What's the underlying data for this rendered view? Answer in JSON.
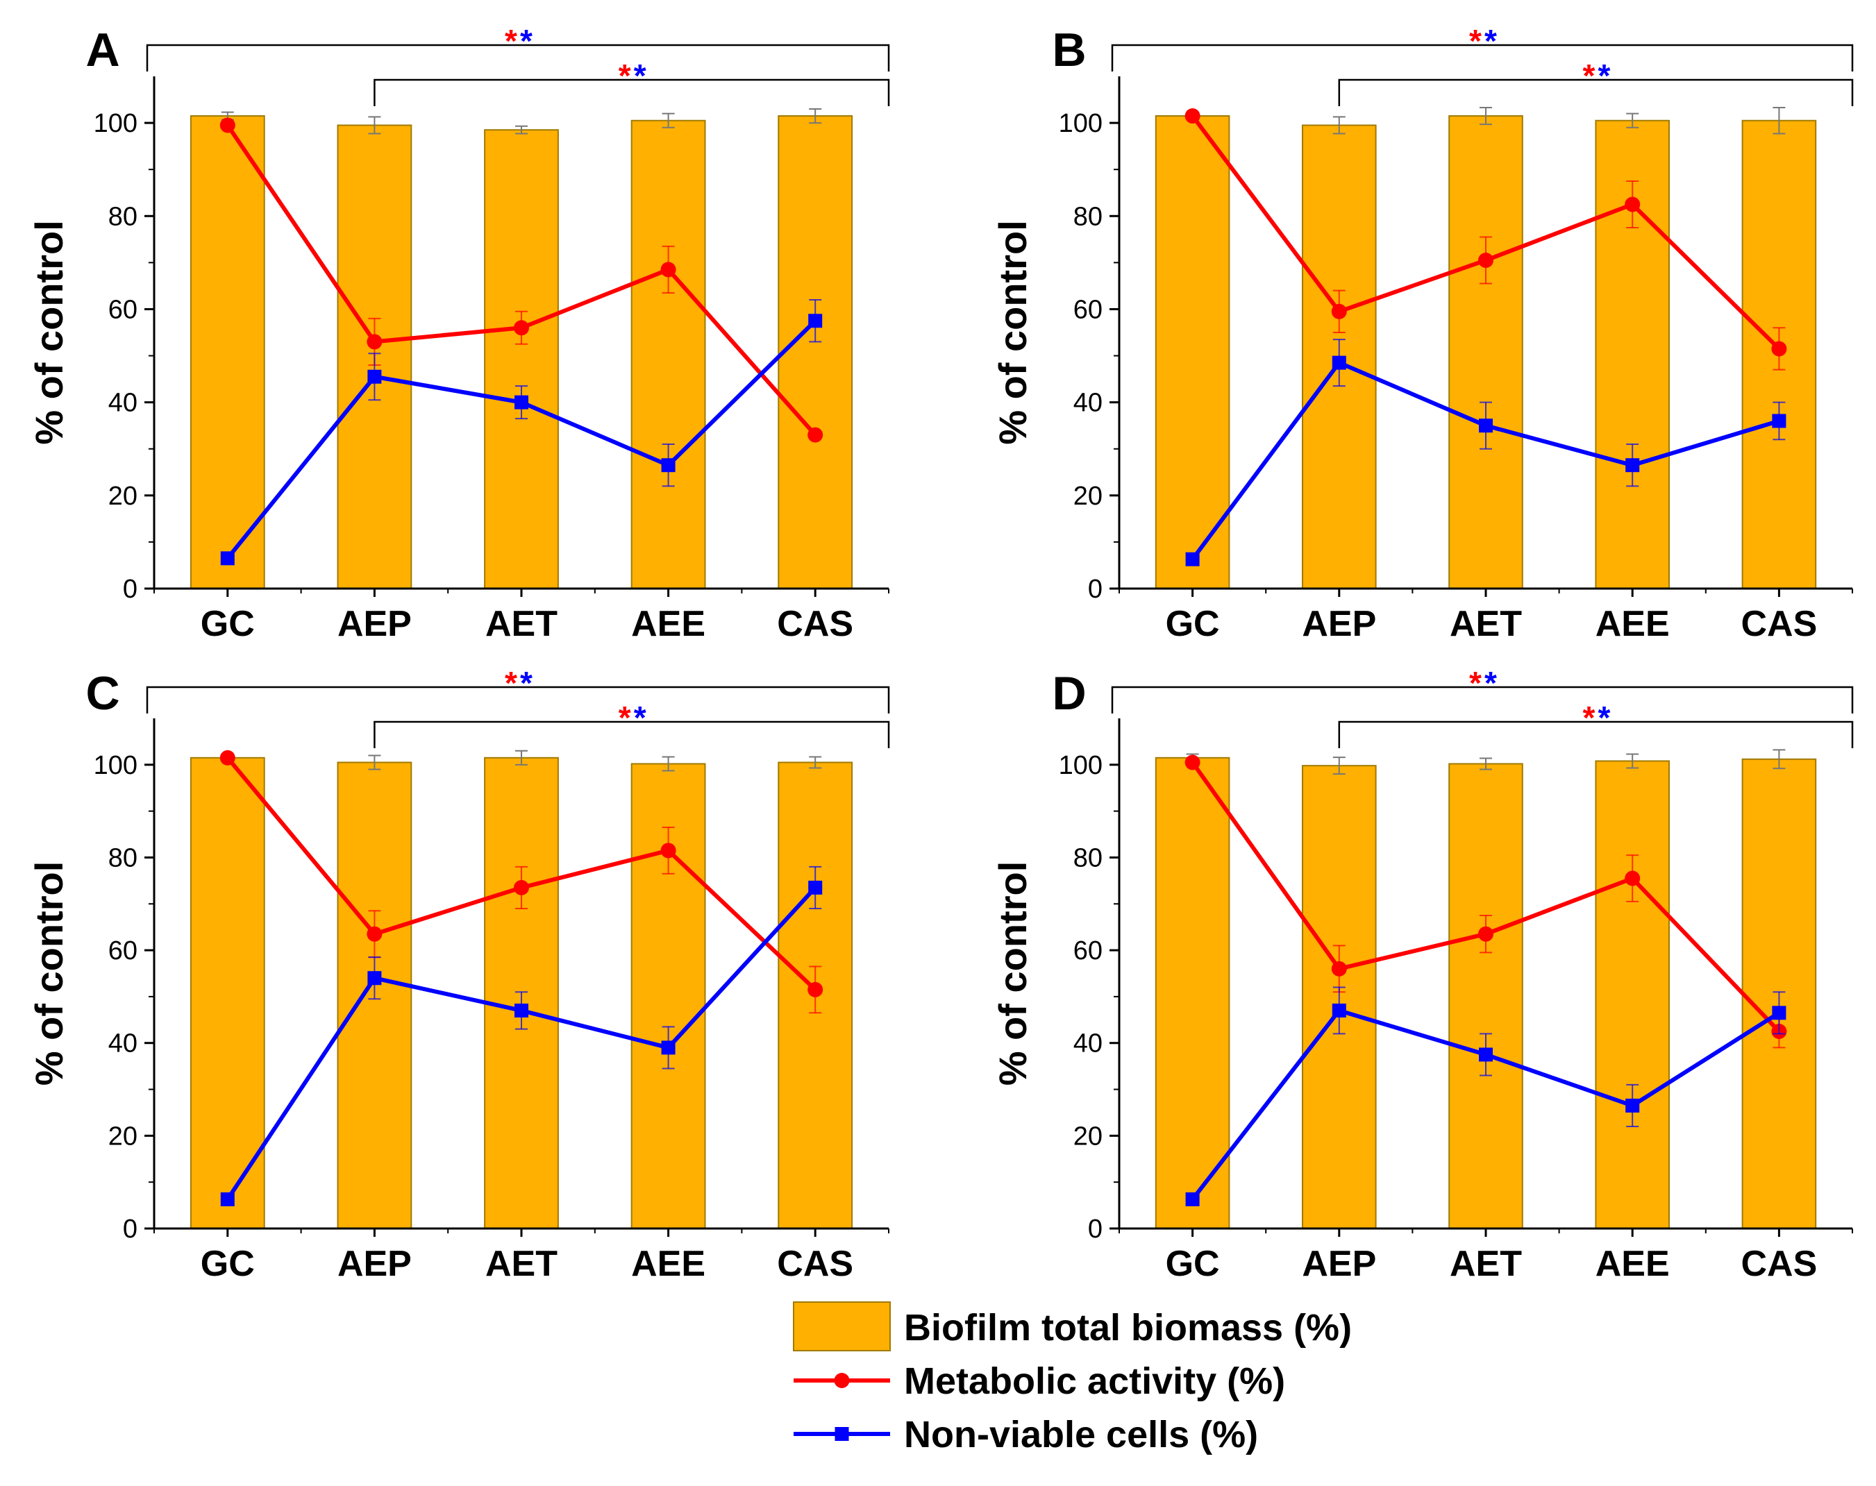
{
  "figure": {
    "colors": {
      "bar_fill": "#FFB000",
      "bar_stroke": "#A07A00",
      "metabolic": "#FF0000",
      "nonviable": "#0000FF",
      "axis": "#000000",
      "error_bar": "#777777"
    }
  },
  "chart_data": [
    {
      "panel": "A",
      "type": "bar",
      "categories": [
        "GC",
        "AEP",
        "AET",
        "AEE",
        "CAS"
      ],
      "ylabel": "% of control",
      "ylim": [
        0,
        110
      ],
      "yticks": [
        0,
        20,
        40,
        60,
        80,
        100
      ],
      "significance": [
        {
          "from": "GC",
          "to": "CAS",
          "stars": [
            {
              "symbol": "*",
              "color": "#FF0000"
            },
            {
              "symbol": "*",
              "color": "#0000FF"
            }
          ]
        },
        {
          "from": "AEP",
          "to": "CAS",
          "stars": [
            {
              "symbol": "*",
              "color": "#FF0000"
            },
            {
              "symbol": "*",
              "color": "#0000FF"
            }
          ]
        }
      ],
      "series": [
        {
          "name": "Biofilm total biomass (%)",
          "kind": "bar",
          "values": [
            101.5,
            99.5,
            98.5,
            100.5,
            101.5
          ],
          "errors": [
            0.8,
            1.8,
            0.8,
            1.5,
            1.5
          ]
        },
        {
          "name": "Metabolic activity (%)",
          "kind": "line",
          "marker": "circle",
          "values": [
            99.5,
            53,
            56,
            68.5,
            33
          ],
          "errors": [
            0,
            5,
            3.5,
            5,
            0
          ]
        },
        {
          "name": "Non-viable cells (%)",
          "kind": "line",
          "marker": "square",
          "values": [
            6.5,
            45.5,
            40,
            26.5,
            57.5
          ],
          "errors": [
            0,
            5,
            3.5,
            4.5,
            4.5
          ]
        }
      ]
    },
    {
      "panel": "B",
      "type": "bar",
      "categories": [
        "GC",
        "AEP",
        "AET",
        "AEE",
        "CAS"
      ],
      "ylabel": "% of control",
      "ylim": [
        0,
        110
      ],
      "yticks": [
        0,
        20,
        40,
        60,
        80,
        100
      ],
      "significance": [
        {
          "from": "GC",
          "to": "CAS",
          "stars": [
            {
              "symbol": "*",
              "color": "#FF0000"
            },
            {
              "symbol": "*",
              "color": "#0000FF"
            }
          ]
        },
        {
          "from": "AEP",
          "to": "CAS",
          "stars": [
            {
              "symbol": "*",
              "color": "#FF0000"
            },
            {
              "symbol": "*",
              "color": "#0000FF"
            }
          ]
        }
      ],
      "series": [
        {
          "name": "Biofilm total biomass (%)",
          "kind": "bar",
          "values": [
            101.5,
            99.5,
            101.5,
            100.5,
            100.5
          ],
          "errors": [
            0.8,
            1.8,
            1.8,
            1.5,
            2.8
          ]
        },
        {
          "name": "Metabolic activity (%)",
          "kind": "line",
          "marker": "circle",
          "values": [
            101.5,
            59.5,
            70.5,
            82.5,
            51.5
          ],
          "errors": [
            0,
            4.5,
            5,
            5,
            4.5
          ]
        },
        {
          "name": "Non-viable cells (%)",
          "kind": "line",
          "marker": "square",
          "values": [
            6.3,
            48.5,
            35,
            26.5,
            36
          ],
          "errors": [
            0,
            5,
            5,
            4.5,
            4
          ]
        }
      ]
    },
    {
      "panel": "C",
      "type": "bar",
      "categories": [
        "GC",
        "AEP",
        "AET",
        "AEE",
        "CAS"
      ],
      "ylabel": "% of control",
      "ylim": [
        0,
        110
      ],
      "yticks": [
        0,
        20,
        40,
        60,
        80,
        100
      ],
      "significance": [
        {
          "from": "GC",
          "to": "CAS",
          "stars": [
            {
              "symbol": "*",
              "color": "#FF0000"
            },
            {
              "symbol": "*",
              "color": "#0000FF"
            }
          ]
        },
        {
          "from": "AEP",
          "to": "CAS",
          "stars": [
            {
              "symbol": "*",
              "color": "#FF0000"
            },
            {
              "symbol": "*",
              "color": "#0000FF"
            }
          ]
        }
      ],
      "series": [
        {
          "name": "Biofilm total biomass (%)",
          "kind": "bar",
          "values": [
            101.5,
            100.5,
            101.5,
            100.2,
            100.5
          ],
          "errors": [
            0.8,
            1.5,
            1.5,
            1.5,
            1.2
          ]
        },
        {
          "name": "Metabolic activity (%)",
          "kind": "line",
          "marker": "circle",
          "values": [
            101.5,
            63.5,
            73.5,
            81.5,
            51.5
          ],
          "errors": [
            0,
            5,
            4.5,
            5,
            5
          ]
        },
        {
          "name": "Non-viable cells (%)",
          "kind": "line",
          "marker": "square",
          "values": [
            6.3,
            54,
            47,
            39,
            73.5
          ],
          "errors": [
            0,
            4.5,
            4,
            4.5,
            4.5
          ]
        }
      ]
    },
    {
      "panel": "D",
      "type": "bar",
      "categories": [
        "GC",
        "AEP",
        "AET",
        "AEE",
        "CAS"
      ],
      "ylabel": "% of control",
      "ylim": [
        0,
        110
      ],
      "yticks": [
        0,
        20,
        40,
        60,
        80,
        100
      ],
      "significance": [
        {
          "from": "GC",
          "to": "CAS",
          "stars": [
            {
              "symbol": "*",
              "color": "#FF0000"
            },
            {
              "symbol": "*",
              "color": "#0000FF"
            }
          ]
        },
        {
          "from": "AEP",
          "to": "CAS",
          "stars": [
            {
              "symbol": "*",
              "color": "#FF0000"
            },
            {
              "symbol": "*",
              "color": "#0000FF"
            }
          ]
        }
      ],
      "series": [
        {
          "name": "Biofilm total biomass (%)",
          "kind": "bar",
          "values": [
            101.5,
            99.8,
            100.2,
            100.8,
            101.2
          ],
          "errors": [
            0.8,
            1.8,
            1.2,
            1.5,
            2
          ]
        },
        {
          "name": "Metabolic activity (%)",
          "kind": "line",
          "marker": "circle",
          "values": [
            100.5,
            56,
            63.5,
            75.5,
            42.5
          ],
          "errors": [
            0,
            5,
            4,
            5,
            3.5
          ]
        },
        {
          "name": "Non-viable cells (%)",
          "kind": "line",
          "marker": "square",
          "values": [
            6.3,
            47,
            37.5,
            26.5,
            46.5
          ],
          "errors": [
            0,
            5,
            4.5,
            4.5,
            4.5
          ]
        }
      ]
    }
  ],
  "legend": {
    "items": [
      {
        "label": "Biofilm total biomass (%)",
        "kind": "bar"
      },
      {
        "label": "Metabolic activity (%)",
        "kind": "line-circle"
      },
      {
        "label": "Non-viable cells (%)",
        "kind": "line-square"
      }
    ]
  }
}
